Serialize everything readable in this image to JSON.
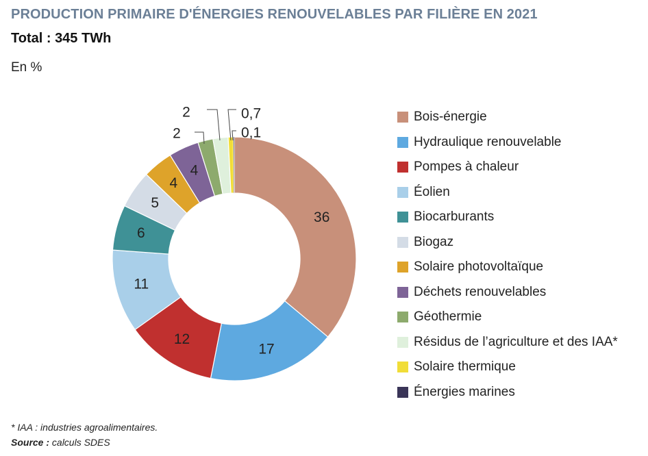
{
  "header": {
    "title": "PRODUCTION PRIMAIRE D'ÉNERGIES RENOUVELABLES PAR FILIÈRE EN 2021",
    "subtitle": "Total : 345 TWh",
    "unit": "En %"
  },
  "chart_data": {
    "type": "pie",
    "variant": "donut",
    "title": "PRODUCTION PRIMAIRE D'ÉNERGIES RENOUVELABLES PAR FILIÈRE EN 2021",
    "subtitle": "Total : 345 TWh",
    "unit": "En %",
    "legend_position": "right",
    "slices": [
      {
        "label": "Bois-énergie",
        "value": 36,
        "display": "36",
        "color": "#c8907a"
      },
      {
        "label": "Hydraulique renouvelable",
        "value": 17,
        "display": "17",
        "color": "#5ea9e0"
      },
      {
        "label": "Pompes à chaleur",
        "value": 12,
        "display": "12",
        "color": "#c0302f"
      },
      {
        "label": "Éolien",
        "value": 11,
        "display": "11",
        "color": "#a9cfe9"
      },
      {
        "label": "Biocarburants",
        "value": 6,
        "display": "6",
        "color": "#3f9196"
      },
      {
        "label": "Biogaz",
        "value": 5,
        "display": "5",
        "color": "#d4dce6"
      },
      {
        "label": "Solaire photovoltaïque",
        "value": 4,
        "display": "4",
        "color": "#dea32a"
      },
      {
        "label": "Déchets renouvelables",
        "value": 4,
        "display": "4",
        "color": "#7e6497"
      },
      {
        "label": "Géothermie",
        "value": 2,
        "display": "2",
        "color": "#8daa6d"
      },
      {
        "label": "Résidus de l’agriculture et des IAA*",
        "value": 2,
        "display": "2",
        "color": "#dff0dc"
      },
      {
        "label": "Solaire thermique",
        "value": 0.7,
        "display": "0,7",
        "color": "#f1dd38"
      },
      {
        "label": "Énergies marines",
        "value": 0.1,
        "display": "0,1",
        "color": "#3a3558"
      }
    ]
  },
  "footnote": "* IAA : industries agroalimentaires.",
  "source": {
    "label": "Source :",
    "text": "calculs SDES"
  }
}
